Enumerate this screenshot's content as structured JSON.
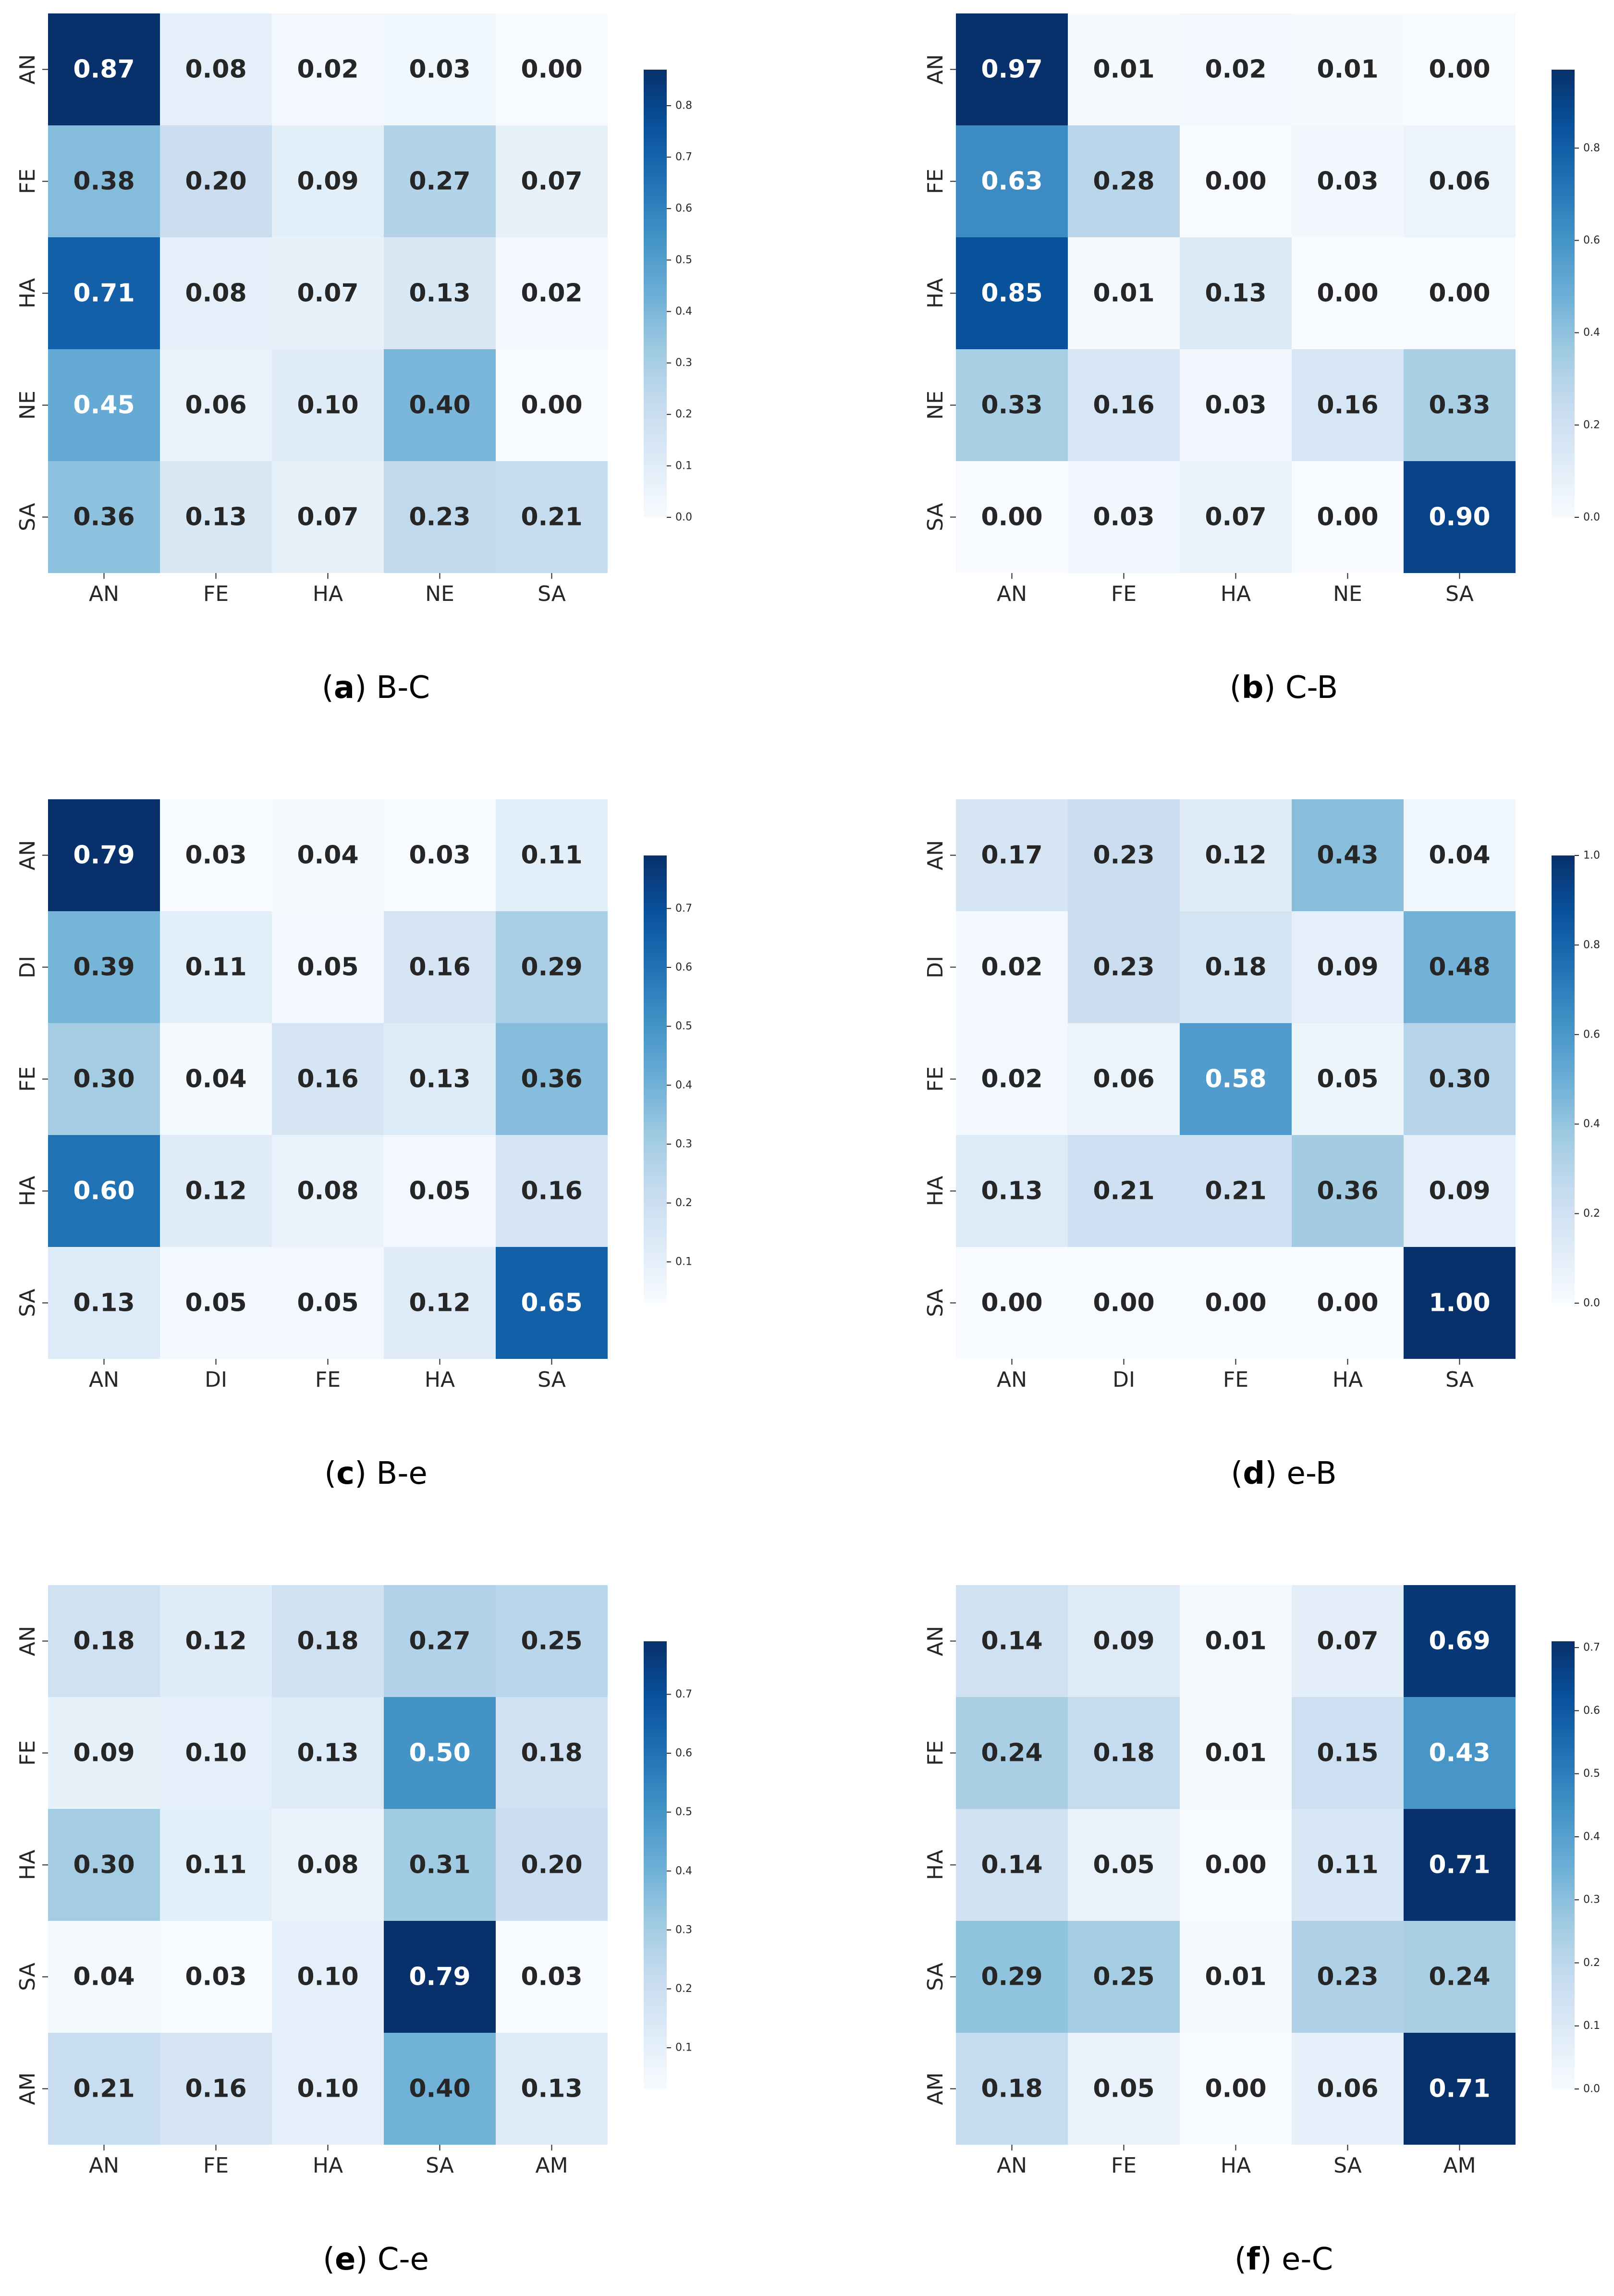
{
  "chart_data": [
    {
      "type": "heatmap",
      "caption_letter": "a",
      "caption_text": "B-C",
      "x_categories": [
        "AN",
        "FE",
        "HA",
        "NE",
        "SA"
      ],
      "y_categories": [
        "AN",
        "FE",
        "HA",
        "NE",
        "SA"
      ],
      "values": [
        [
          0.87,
          0.08,
          0.02,
          0.03,
          0.0
        ],
        [
          0.38,
          0.2,
          0.09,
          0.27,
          0.07
        ],
        [
          0.71,
          0.08,
          0.07,
          0.13,
          0.02
        ],
        [
          0.45,
          0.06,
          0.1,
          0.4,
          0.0
        ],
        [
          0.36,
          0.13,
          0.07,
          0.23,
          0.21
        ]
      ],
      "colorbar_ticks": [
        "0.0",
        "0.1",
        "0.2",
        "0.3",
        "0.4",
        "0.5",
        "0.6",
        "0.7",
        "0.8"
      ],
      "colorbar_range": [
        0.0,
        0.87
      ],
      "colormap": "Blues"
    },
    {
      "type": "heatmap",
      "caption_letter": "b",
      "caption_text": "C-B",
      "x_categories": [
        "AN",
        "FE",
        "HA",
        "NE",
        "SA"
      ],
      "y_categories": [
        "AN",
        "FE",
        "HA",
        "NE",
        "SA"
      ],
      "values": [
        [
          0.97,
          0.01,
          0.02,
          0.01,
          0.0
        ],
        [
          0.63,
          0.28,
          0.0,
          0.03,
          0.06
        ],
        [
          0.85,
          0.01,
          0.13,
          0.0,
          0.0
        ],
        [
          0.33,
          0.16,
          0.03,
          0.16,
          0.33
        ],
        [
          0.0,
          0.03,
          0.07,
          0.0,
          0.9
        ]
      ],
      "colorbar_ticks": [
        "0.0",
        "0.2",
        "0.4",
        "0.6",
        "0.8"
      ],
      "colorbar_range": [
        0.0,
        0.97
      ],
      "colormap": "Blues"
    },
    {
      "type": "heatmap",
      "caption_letter": "c",
      "caption_text": "B-e",
      "x_categories": [
        "AN",
        "DI",
        "FE",
        "HA",
        "SA"
      ],
      "y_categories": [
        "AN",
        "DI",
        "FE",
        "HA",
        "SA"
      ],
      "values": [
        [
          0.79,
          0.03,
          0.04,
          0.03,
          0.11
        ],
        [
          0.39,
          0.11,
          0.05,
          0.16,
          0.29
        ],
        [
          0.3,
          0.04,
          0.16,
          0.13,
          0.36
        ],
        [
          0.6,
          0.12,
          0.08,
          0.05,
          0.16
        ],
        [
          0.13,
          0.05,
          0.05,
          0.12,
          0.65
        ]
      ],
      "colorbar_ticks": [
        "0.1",
        "0.2",
        "0.3",
        "0.4",
        "0.5",
        "0.6",
        "0.7"
      ],
      "colorbar_range": [
        0.03,
        0.79
      ],
      "colormap": "Blues"
    },
    {
      "type": "heatmap",
      "caption_letter": "d",
      "caption_text": "e-B",
      "x_categories": [
        "AN",
        "DI",
        "FE",
        "HA",
        "SA"
      ],
      "y_categories": [
        "AN",
        "DI",
        "FE",
        "HA",
        "SA"
      ],
      "values": [
        [
          0.17,
          0.23,
          0.12,
          0.43,
          0.04
        ],
        [
          0.02,
          0.23,
          0.18,
          0.09,
          0.48
        ],
        [
          0.02,
          0.06,
          0.58,
          0.05,
          0.3
        ],
        [
          0.13,
          0.21,
          0.21,
          0.36,
          0.09
        ],
        [
          0.0,
          0.0,
          0.0,
          0.0,
          1.0
        ]
      ],
      "colorbar_ticks": [
        "0.0",
        "0.2",
        "0.4",
        "0.6",
        "0.8",
        "1.0"
      ],
      "colorbar_range": [
        0.0,
        1.0
      ],
      "colormap": "Blues"
    },
    {
      "type": "heatmap",
      "caption_letter": "e",
      "caption_text": "C-e",
      "x_categories": [
        "AN",
        "FE",
        "HA",
        "SA",
        "AM"
      ],
      "y_categories": [
        "AN",
        "FE",
        "HA",
        "SA",
        "AM"
      ],
      "values": [
        [
          0.18,
          0.12,
          0.18,
          0.27,
          0.25
        ],
        [
          0.09,
          0.1,
          0.13,
          0.5,
          0.18
        ],
        [
          0.3,
          0.11,
          0.08,
          0.31,
          0.2
        ],
        [
          0.04,
          0.03,
          0.1,
          0.79,
          0.03
        ],
        [
          0.21,
          0.16,
          0.1,
          0.4,
          0.13
        ]
      ],
      "colorbar_ticks": [
        "0.1",
        "0.2",
        "0.3",
        "0.4",
        "0.5",
        "0.6",
        "0.7"
      ],
      "colorbar_range": [
        0.03,
        0.79
      ],
      "colormap": "Blues"
    },
    {
      "type": "heatmap",
      "caption_letter": "f",
      "caption_text": "e-C",
      "x_categories": [
        "AN",
        "FE",
        "HA",
        "SA",
        "AM"
      ],
      "y_categories": [
        "AN",
        "FE",
        "HA",
        "SA",
        "AM"
      ],
      "values": [
        [
          0.14,
          0.09,
          0.01,
          0.07,
          0.69
        ],
        [
          0.24,
          0.18,
          0.01,
          0.15,
          0.43
        ],
        [
          0.14,
          0.05,
          0.0,
          0.11,
          0.71
        ],
        [
          0.29,
          0.25,
          0.01,
          0.23,
          0.24
        ],
        [
          0.18,
          0.05,
          0.0,
          0.06,
          0.71
        ]
      ],
      "colorbar_ticks": [
        "0.0",
        "0.1",
        "0.2",
        "0.3",
        "0.4",
        "0.5",
        "0.6",
        "0.7"
      ],
      "colorbar_range": [
        0.0,
        0.71
      ],
      "colormap": "Blues"
    }
  ]
}
